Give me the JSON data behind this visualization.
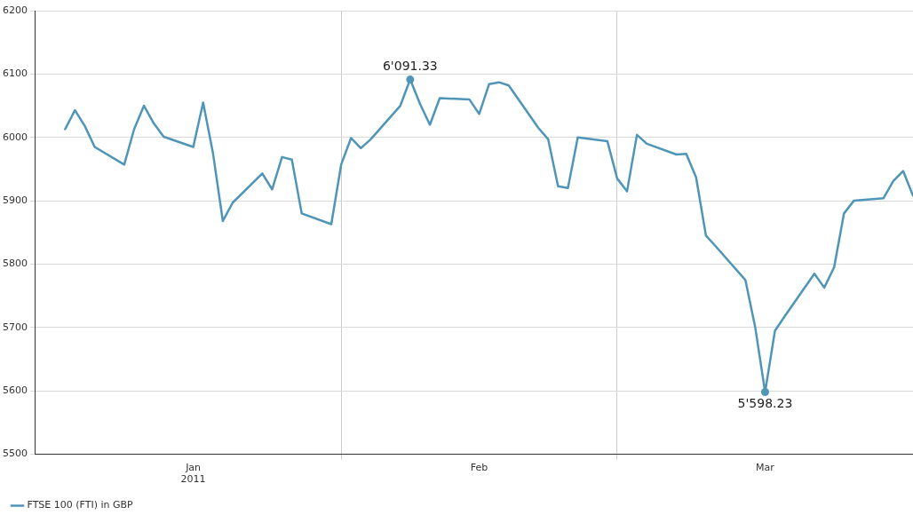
{
  "chart_data": {
    "type": "line",
    "x": [
      "2011-01-04",
      "2011-01-05",
      "2011-01-06",
      "2011-01-07",
      "2011-01-10",
      "2011-01-11",
      "2011-01-12",
      "2011-01-13",
      "2011-01-14",
      "2011-01-17",
      "2011-01-18",
      "2011-01-19",
      "2011-01-20",
      "2011-01-21",
      "2011-01-24",
      "2011-01-25",
      "2011-01-26",
      "2011-01-27",
      "2011-01-28",
      "2011-01-31",
      "2011-02-01",
      "2011-02-02",
      "2011-02-03",
      "2011-02-04",
      "2011-02-07",
      "2011-02-08",
      "2011-02-09",
      "2011-02-10",
      "2011-02-11",
      "2011-02-14",
      "2011-02-15",
      "2011-02-16",
      "2011-02-17",
      "2011-02-18",
      "2011-02-21",
      "2011-02-22",
      "2011-02-23",
      "2011-02-24",
      "2011-02-25",
      "2011-02-28",
      "2011-03-01",
      "2011-03-02",
      "2011-03-03",
      "2011-03-04",
      "2011-03-07",
      "2011-03-08",
      "2011-03-09",
      "2011-03-10",
      "2011-03-11",
      "2011-03-14",
      "2011-03-15",
      "2011-03-16",
      "2011-03-17",
      "2011-03-18",
      "2011-03-21",
      "2011-03-22",
      "2011-03-23",
      "2011-03-24",
      "2011-03-25",
      "2011-03-28",
      "2011-03-29",
      "2011-03-30",
      "2011-03-31"
    ],
    "series": [
      {
        "name": "FTSE 100 (FTI) in GBP",
        "color": "#4f95b8",
        "values": [
          6013,
          6043,
          6018,
          5985,
          5957,
          6013,
          6050,
          6022,
          6001,
          5985,
          6055,
          5975,
          5868,
          5897,
          5943,
          5918,
          5969,
          5965,
          5880,
          5863,
          5957,
          5999,
          5983,
          5997,
          6050,
          6091.33,
          6053,
          6020,
          6062,
          6060,
          6037,
          6084,
          6087,
          6082,
          6015,
          5997,
          5923,
          5920,
          6000,
          5994,
          5935,
          5915,
          6004,
          5990,
          5973,
          5974,
          5937,
          5845,
          5828,
          5775,
          5700,
          5598.23,
          5695,
          5718,
          5785,
          5763,
          5795,
          5880,
          5900,
          5904,
          5931,
          5947,
          5908
        ]
      }
    ],
    "xlim": [
      "2011-01-01",
      "2011-03-31"
    ],
    "xticks": [
      {
        "value": "2011-01-17",
        "label": "Jan\n2011"
      },
      {
        "value": "2011-02-01",
        "label": null
      },
      {
        "value": "2011-02-15",
        "label": "Feb"
      },
      {
        "value": "2011-03-01",
        "label": null
      },
      {
        "value": "2011-03-16",
        "label": "Mar"
      }
    ],
    "ylim": [
      5500,
      6200
    ],
    "yticks": [
      5500,
      5600,
      5700,
      5800,
      5900,
      6000,
      6100,
      6200
    ],
    "grid": true,
    "legend": "bottom left",
    "marker": "none",
    "line_style": "solid",
    "annotations": [
      {
        "text": "6'091.33",
        "x": "2011-02-08",
        "y": 6091.33
      },
      {
        "text": "5'598.23",
        "x": "2011-03-16",
        "y": 5598.23
      }
    ]
  }
}
